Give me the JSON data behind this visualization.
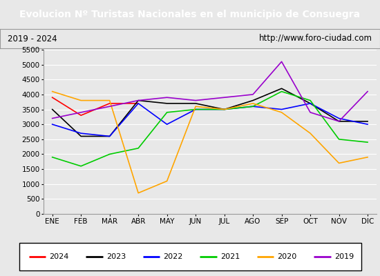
{
  "title": "Evolucion Nº Turistas Nacionales en el municipio de Consuegra",
  "subtitle_left": "2019 - 2024",
  "subtitle_right": "http://www.foro-ciudad.com",
  "title_bg_color": "#4a86c8",
  "title_text_color": "#ffffff",
  "months": [
    "ENE",
    "FEB",
    "MAR",
    "ABR",
    "MAY",
    "JUN",
    "JUL",
    "AGO",
    "SEP",
    "OCT",
    "NOV",
    "DIC"
  ],
  "ylim": [
    0,
    5500
  ],
  "yticks": [
    0,
    500,
    1000,
    1500,
    2000,
    2500,
    3000,
    3500,
    4000,
    4500,
    5000,
    5500
  ],
  "series": {
    "2024": {
      "color": "#ff0000",
      "data": [
        3900,
        3300,
        3700,
        3700,
        null,
        null,
        null,
        null,
        null,
        null,
        null,
        null
      ]
    },
    "2023": {
      "color": "#000000",
      "data": [
        3500,
        2600,
        2600,
        3800,
        3700,
        3700,
        3500,
        3800,
        4200,
        3700,
        3100,
        3100
      ]
    },
    "2022": {
      "color": "#0000ff",
      "data": [
        3000,
        2700,
        2600,
        3700,
        3000,
        3500,
        3500,
        3600,
        3500,
        3700,
        3200,
        3000
      ]
    },
    "2021": {
      "color": "#00cc00",
      "data": [
        1900,
        1600,
        2000,
        2200,
        3400,
        3500,
        3500,
        3600,
        4100,
        3800,
        2500,
        2400
      ]
    },
    "2020": {
      "color": "#ffa500",
      "data": [
        4100,
        3800,
        3800,
        700,
        1100,
        3600,
        3500,
        3700,
        3400,
        2700,
        1700,
        1900
      ]
    },
    "2019": {
      "color": "#9900cc",
      "data": [
        3200,
        3400,
        3600,
        3800,
        3900,
        3800,
        3900,
        4000,
        5100,
        3400,
        3100,
        4100
      ]
    }
  },
  "legend_order": [
    "2024",
    "2023",
    "2022",
    "2021",
    "2020",
    "2019"
  ],
  "bg_color": "#e8e8e8",
  "plot_bg_color": "#e8e8e8",
  "grid_color": "#ffffff"
}
